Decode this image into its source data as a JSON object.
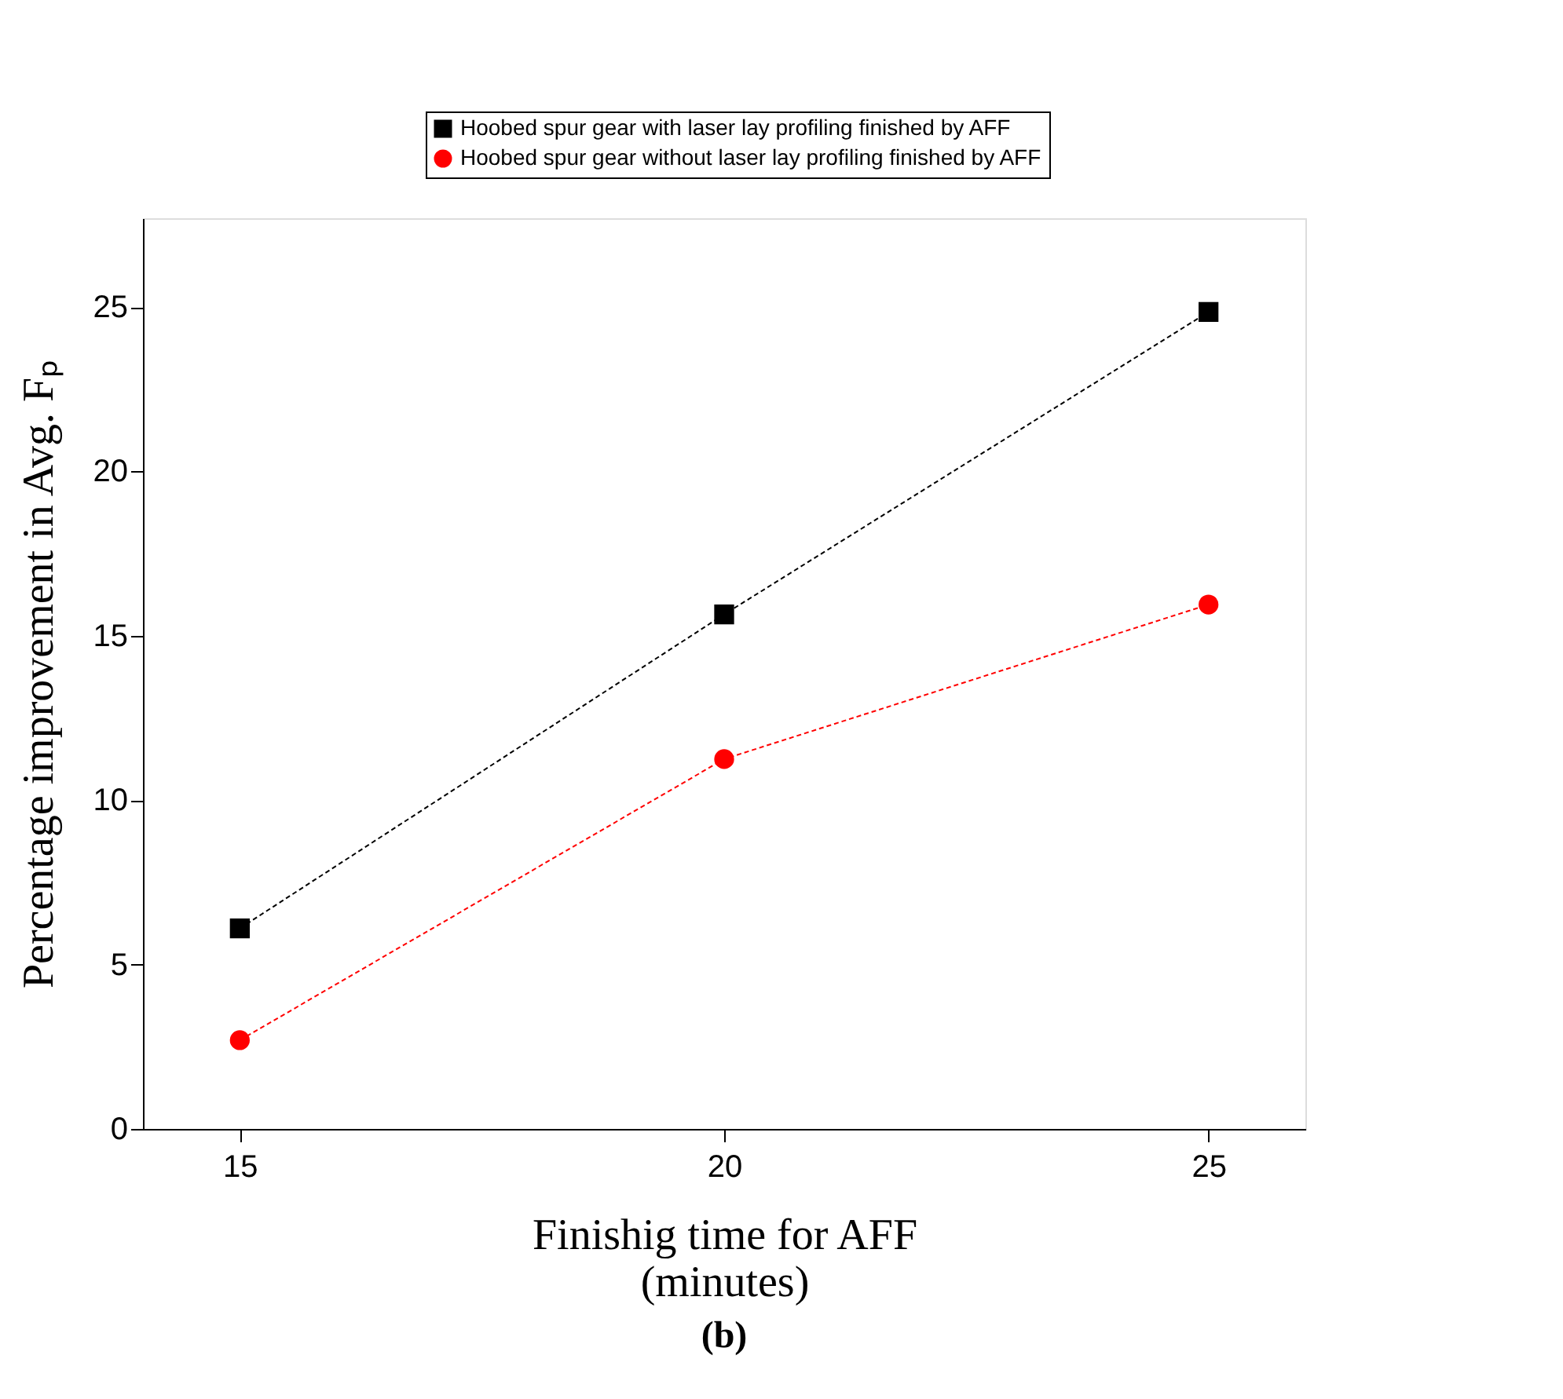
{
  "chart_data": {
    "type": "line",
    "xlabel": "Finishig time for AFF\n(minutes)",
    "ylabel": "Percentage improvement in Avg. Fₚ",
    "x": [
      15,
      20,
      25
    ],
    "xlim": [
      14,
      26
    ],
    "xticks": [
      15,
      20,
      25
    ],
    "ylim": [
      0,
      27.7
    ],
    "yticks": [
      0,
      5,
      10,
      15,
      20,
      25
    ],
    "series": [
      {
        "name": "Hoobed spur gear with laser lay profiling finished by AFF",
        "color": "#000000",
        "marker": "square",
        "values": [
          6.1,
          15.65,
          24.85
        ]
      },
      {
        "name": "Hoobed spur gear without laser lay profiling finished by AFF",
        "color": "#ff0000",
        "marker": "circle",
        "values": [
          2.7,
          11.25,
          15.95
        ]
      }
    ],
    "line_style": "dashed",
    "grid": false,
    "legend": "top right",
    "annotations": [
      "(b)"
    ]
  }
}
